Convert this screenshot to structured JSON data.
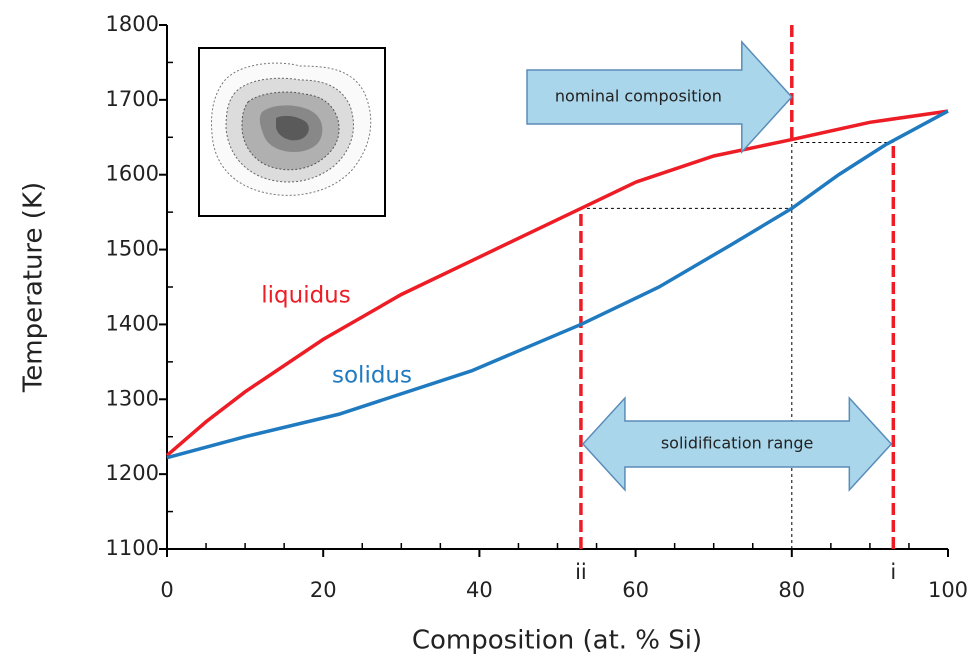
{
  "chart_data": {
    "type": "line",
    "x_label": "Composition (at. % Si)",
    "y_label": "Temperature (K)",
    "xlim": [
      0,
      100
    ],
    "xticks": [
      0,
      20,
      40,
      60,
      80,
      100
    ],
    "ylim": [
      1100,
      1800
    ],
    "yticks": [
      1100,
      1200,
      1300,
      1400,
      1500,
      1600,
      1700,
      1800
    ],
    "series": [
      {
        "name": "liquidus",
        "color": "#ee1c25",
        "x": [
          0,
          5,
          10,
          20,
          30,
          40,
          53,
          60,
          70,
          80,
          90,
          100
        ],
        "values": [
          1225,
          1270,
          1310,
          1380,
          1440,
          1490,
          1555,
          1590,
          1625,
          1647,
          1670,
          1685
        ]
      },
      {
        "name": "solidus",
        "color": "#1f7ac0",
        "x": [
          0,
          10,
          22,
          39,
          53,
          63,
          72,
          80,
          86,
          92,
          100
        ],
        "values": [
          1222,
          1250,
          1280,
          1338,
          1400,
          1450,
          1505,
          1555,
          1600,
          1640,
          1685
        ]
      }
    ],
    "markers": [
      {
        "label": "ii",
        "x": 53,
        "y": 1555
      },
      {
        "label": "i",
        "x": 93,
        "y": 1643
      }
    ],
    "nominal": {
      "label": "nominal composition",
      "x": 80,
      "y": 1647
    },
    "range_label": "solidification range"
  }
}
